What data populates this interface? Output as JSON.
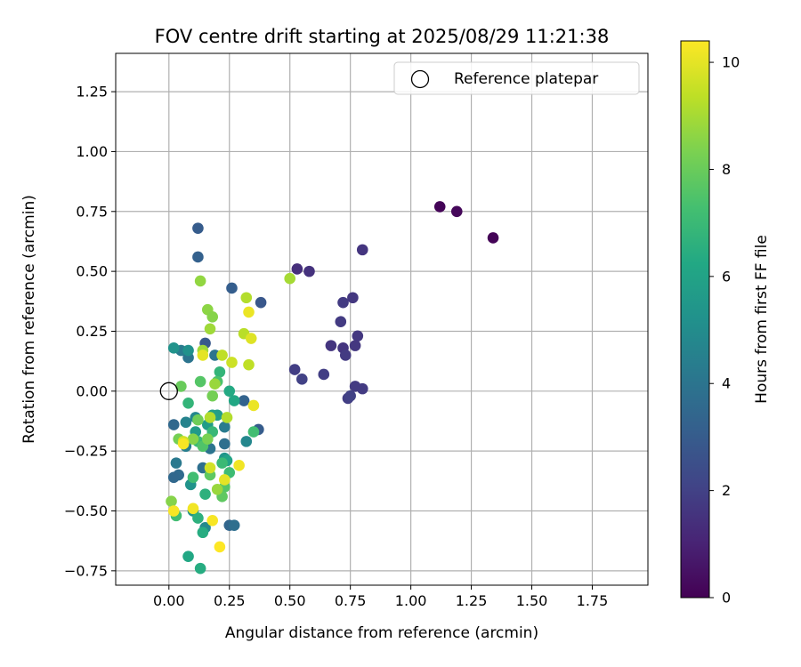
{
  "chart_data": {
    "type": "scatter",
    "title": "FOV centre drift starting at 2025/08/29 11:21:38",
    "xlabel": "Angular distance from reference (arcmin)",
    "ylabel": "Rotation from reference (arcmin)",
    "xlim": [
      -0.22,
      1.98
    ],
    "ylim": [
      -0.81,
      1.41
    ],
    "xticks": [
      0.0,
      0.25,
      0.5,
      0.75,
      1.0,
      1.25,
      1.5,
      1.75
    ],
    "xtick_labels": [
      "0.00",
      "0.25",
      "0.50",
      "0.75",
      "1.00",
      "1.25",
      "1.50",
      "1.75"
    ],
    "yticks": [
      -0.75,
      -0.5,
      -0.25,
      0.0,
      0.25,
      0.5,
      0.75,
      1.0,
      1.25
    ],
    "ytick_labels": [
      "−0.75",
      "−0.50",
      "−0.25",
      "0.00",
      "0.25",
      "0.50",
      "0.75",
      "1.00",
      "1.25"
    ],
    "grid": true,
    "legend": {
      "position": "upper right",
      "entries": [
        "Reference platepar"
      ]
    },
    "reference_point": {
      "x": 0.0,
      "y": 0.0
    },
    "colorbar": {
      "label": "Hours from first FF file",
      "colormap": "viridis",
      "range": [
        0,
        10.4
      ],
      "ticks": [
        0,
        2,
        4,
        6,
        8,
        10
      ],
      "tick_labels": [
        "0",
        "2",
        "4",
        "6",
        "8",
        "10"
      ]
    },
    "points": [
      {
        "x": 1.12,
        "y": 0.77,
        "t": 0.1
      },
      {
        "x": 1.19,
        "y": 0.75,
        "t": 0.2
      },
      {
        "x": 1.34,
        "y": 0.64,
        "t": 0.1
      },
      {
        "x": 0.53,
        "y": 0.51,
        "t": 1.4
      },
      {
        "x": 0.58,
        "y": 0.5,
        "t": 1.5
      },
      {
        "x": 0.8,
        "y": 0.59,
        "t": 1.6
      },
      {
        "x": 0.72,
        "y": 0.37,
        "t": 1.8
      },
      {
        "x": 0.76,
        "y": 0.39,
        "t": 1.7
      },
      {
        "x": 0.71,
        "y": 0.29,
        "t": 1.8
      },
      {
        "x": 0.78,
        "y": 0.23,
        "t": 1.7
      },
      {
        "x": 0.67,
        "y": 0.19,
        "t": 1.6
      },
      {
        "x": 0.72,
        "y": 0.18,
        "t": 1.6
      },
      {
        "x": 0.77,
        "y": 0.19,
        "t": 1.7
      },
      {
        "x": 0.73,
        "y": 0.15,
        "t": 1.8
      },
      {
        "x": 0.52,
        "y": 0.09,
        "t": 1.9
      },
      {
        "x": 0.55,
        "y": 0.05,
        "t": 2.0
      },
      {
        "x": 0.64,
        "y": 0.07,
        "t": 1.9
      },
      {
        "x": 0.77,
        "y": 0.02,
        "t": 1.8
      },
      {
        "x": 0.8,
        "y": 0.01,
        "t": 1.8
      },
      {
        "x": 0.74,
        "y": -0.03,
        "t": 1.9
      },
      {
        "x": 0.75,
        "y": -0.02,
        "t": 2.0
      },
      {
        "x": 0.12,
        "y": 0.68,
        "t": 3.0
      },
      {
        "x": 0.12,
        "y": 0.56,
        "t": 3.2
      },
      {
        "x": 0.26,
        "y": 0.43,
        "t": 3.1
      },
      {
        "x": 0.38,
        "y": 0.37,
        "t": 2.8
      },
      {
        "x": 0.15,
        "y": 0.2,
        "t": 2.9
      },
      {
        "x": 0.37,
        "y": -0.16,
        "t": 3.0
      },
      {
        "x": 0.31,
        "y": -0.04,
        "t": 3.3
      },
      {
        "x": 0.02,
        "y": -0.14,
        "t": 3.5
      },
      {
        "x": 0.04,
        "y": -0.35,
        "t": 3.6
      },
      {
        "x": 0.02,
        "y": -0.36,
        "t": 3.5
      },
      {
        "x": 0.25,
        "y": -0.56,
        "t": 3.4
      },
      {
        "x": 0.27,
        "y": -0.56,
        "t": 3.8
      },
      {
        "x": 0.23,
        "y": -0.22,
        "t": 3.8
      },
      {
        "x": 0.17,
        "y": -0.24,
        "t": 4.0
      },
      {
        "x": 0.14,
        "y": -0.32,
        "t": 3.8
      },
      {
        "x": 0.08,
        "y": 0.14,
        "t": 4.0
      },
      {
        "x": 0.05,
        "y": 0.17,
        "t": 4.3
      },
      {
        "x": 0.19,
        "y": 0.15,
        "t": 4.0
      },
      {
        "x": 0.23,
        "y": -0.15,
        "t": 4.3
      },
      {
        "x": 0.07,
        "y": -0.23,
        "t": 4.4
      },
      {
        "x": 0.03,
        "y": -0.3,
        "t": 4.2
      },
      {
        "x": 0.07,
        "y": -0.13,
        "t": 4.6
      },
      {
        "x": 0.11,
        "y": -0.11,
        "t": 4.8
      },
      {
        "x": 0.32,
        "y": -0.21,
        "t": 4.8
      },
      {
        "x": 0.15,
        "y": -0.57,
        "t": 4.9
      },
      {
        "x": 0.02,
        "y": 0.18,
        "t": 5.3
      },
      {
        "x": 0.08,
        "y": 0.17,
        "t": 5.2
      },
      {
        "x": 0.23,
        "y": -0.28,
        "t": 5.4
      },
      {
        "x": 0.09,
        "y": -0.39,
        "t": 5.3
      },
      {
        "x": 0.1,
        "y": -0.5,
        "t": 5.3
      },
      {
        "x": 0.11,
        "y": -0.17,
        "t": 5.6
      },
      {
        "x": 0.16,
        "y": -0.14,
        "t": 5.7
      },
      {
        "x": 0.2,
        "y": -0.1,
        "t": 5.8
      },
      {
        "x": 0.18,
        "y": -0.1,
        "t": 5.9
      },
      {
        "x": 0.25,
        "y": 0.0,
        "t": 6.3
      },
      {
        "x": 0.27,
        "y": -0.04,
        "t": 6.2
      },
      {
        "x": 0.24,
        "y": -0.29,
        "t": 6.0
      },
      {
        "x": 0.08,
        "y": -0.69,
        "t": 6.2
      },
      {
        "x": 0.13,
        "y": -0.74,
        "t": 6.4
      },
      {
        "x": 0.14,
        "y": -0.59,
        "t": 6.4
      },
      {
        "x": 0.12,
        "y": -0.53,
        "t": 6.6
      },
      {
        "x": 0.15,
        "y": -0.43,
        "t": 6.6
      },
      {
        "x": 0.08,
        "y": -0.05,
        "t": 6.8
      },
      {
        "x": 0.21,
        "y": 0.08,
        "t": 6.8
      },
      {
        "x": 0.18,
        "y": -0.17,
        "t": 6.9
      },
      {
        "x": 0.12,
        "y": -0.21,
        "t": 7.0
      },
      {
        "x": 0.22,
        "y": -0.3,
        "t": 7.0
      },
      {
        "x": 0.25,
        "y": -0.34,
        "t": 7.1
      },
      {
        "x": 0.35,
        "y": -0.17,
        "t": 7.2
      },
      {
        "x": 0.1,
        "y": -0.36,
        "t": 7.2
      },
      {
        "x": 0.03,
        "y": -0.52,
        "t": 7.2
      },
      {
        "x": 0.2,
        "y": 0.04,
        "t": 7.4
      },
      {
        "x": 0.13,
        "y": 0.04,
        "t": 7.6
      },
      {
        "x": 0.14,
        "y": -0.23,
        "t": 7.5
      },
      {
        "x": 0.23,
        "y": -0.4,
        "t": 7.6
      },
      {
        "x": 0.22,
        "y": -0.44,
        "t": 7.8
      },
      {
        "x": 0.17,
        "y": -0.35,
        "t": 7.8
      },
      {
        "x": 0.05,
        "y": 0.02,
        "t": 8.0
      },
      {
        "x": 0.18,
        "y": -0.02,
        "t": 8.2
      },
      {
        "x": 0.12,
        "y": -0.12,
        "t": 8.1
      },
      {
        "x": 0.16,
        "y": -0.2,
        "t": 8.3
      },
      {
        "x": 0.04,
        "y": -0.2,
        "t": 8.2
      },
      {
        "x": 0.1,
        "y": -0.2,
        "t": 8.5
      },
      {
        "x": 0.01,
        "y": -0.46,
        "t": 8.5
      },
      {
        "x": 0.13,
        "y": 0.46,
        "t": 8.7
      },
      {
        "x": 0.16,
        "y": 0.34,
        "t": 8.6
      },
      {
        "x": 0.18,
        "y": 0.31,
        "t": 8.5
      },
      {
        "x": 0.17,
        "y": 0.26,
        "t": 8.9
      },
      {
        "x": 0.19,
        "y": 0.03,
        "t": 8.8
      },
      {
        "x": 0.14,
        "y": 0.17,
        "t": 8.9
      },
      {
        "x": 0.5,
        "y": 0.47,
        "t": 9.0
      },
      {
        "x": 0.2,
        "y": -0.41,
        "t": 8.8
      },
      {
        "x": 0.24,
        "y": -0.11,
        "t": 9.2
      },
      {
        "x": 0.17,
        "y": -0.11,
        "t": 9.2
      },
      {
        "x": 0.31,
        "y": 0.24,
        "t": 9.3
      },
      {
        "x": 0.32,
        "y": 0.39,
        "t": 9.2
      },
      {
        "x": 0.33,
        "y": 0.11,
        "t": 9.4
      },
      {
        "x": 0.22,
        "y": 0.15,
        "t": 9.4
      },
      {
        "x": 0.26,
        "y": 0.12,
        "t": 9.6
      },
      {
        "x": 0.17,
        "y": -0.32,
        "t": 9.7
      },
      {
        "x": 0.06,
        "y": -0.21,
        "t": 9.7
      },
      {
        "x": 0.14,
        "y": 0.15,
        "t": 10.0
      },
      {
        "x": 0.33,
        "y": 0.33,
        "t": 10.1
      },
      {
        "x": 0.34,
        "y": 0.22,
        "t": 9.9
      },
      {
        "x": 0.35,
        "y": -0.06,
        "t": 10.1
      },
      {
        "x": 0.29,
        "y": -0.31,
        "t": 10.2
      },
      {
        "x": 0.23,
        "y": -0.37,
        "t": 10.0
      },
      {
        "x": 0.06,
        "y": -0.22,
        "t": 10.3
      },
      {
        "x": 0.02,
        "y": -0.5,
        "t": 10.3
      },
      {
        "x": 0.1,
        "y": -0.49,
        "t": 10.2
      },
      {
        "x": 0.18,
        "y": -0.54,
        "t": 10.3
      },
      {
        "x": 0.21,
        "y": -0.65,
        "t": 10.4
      }
    ]
  }
}
